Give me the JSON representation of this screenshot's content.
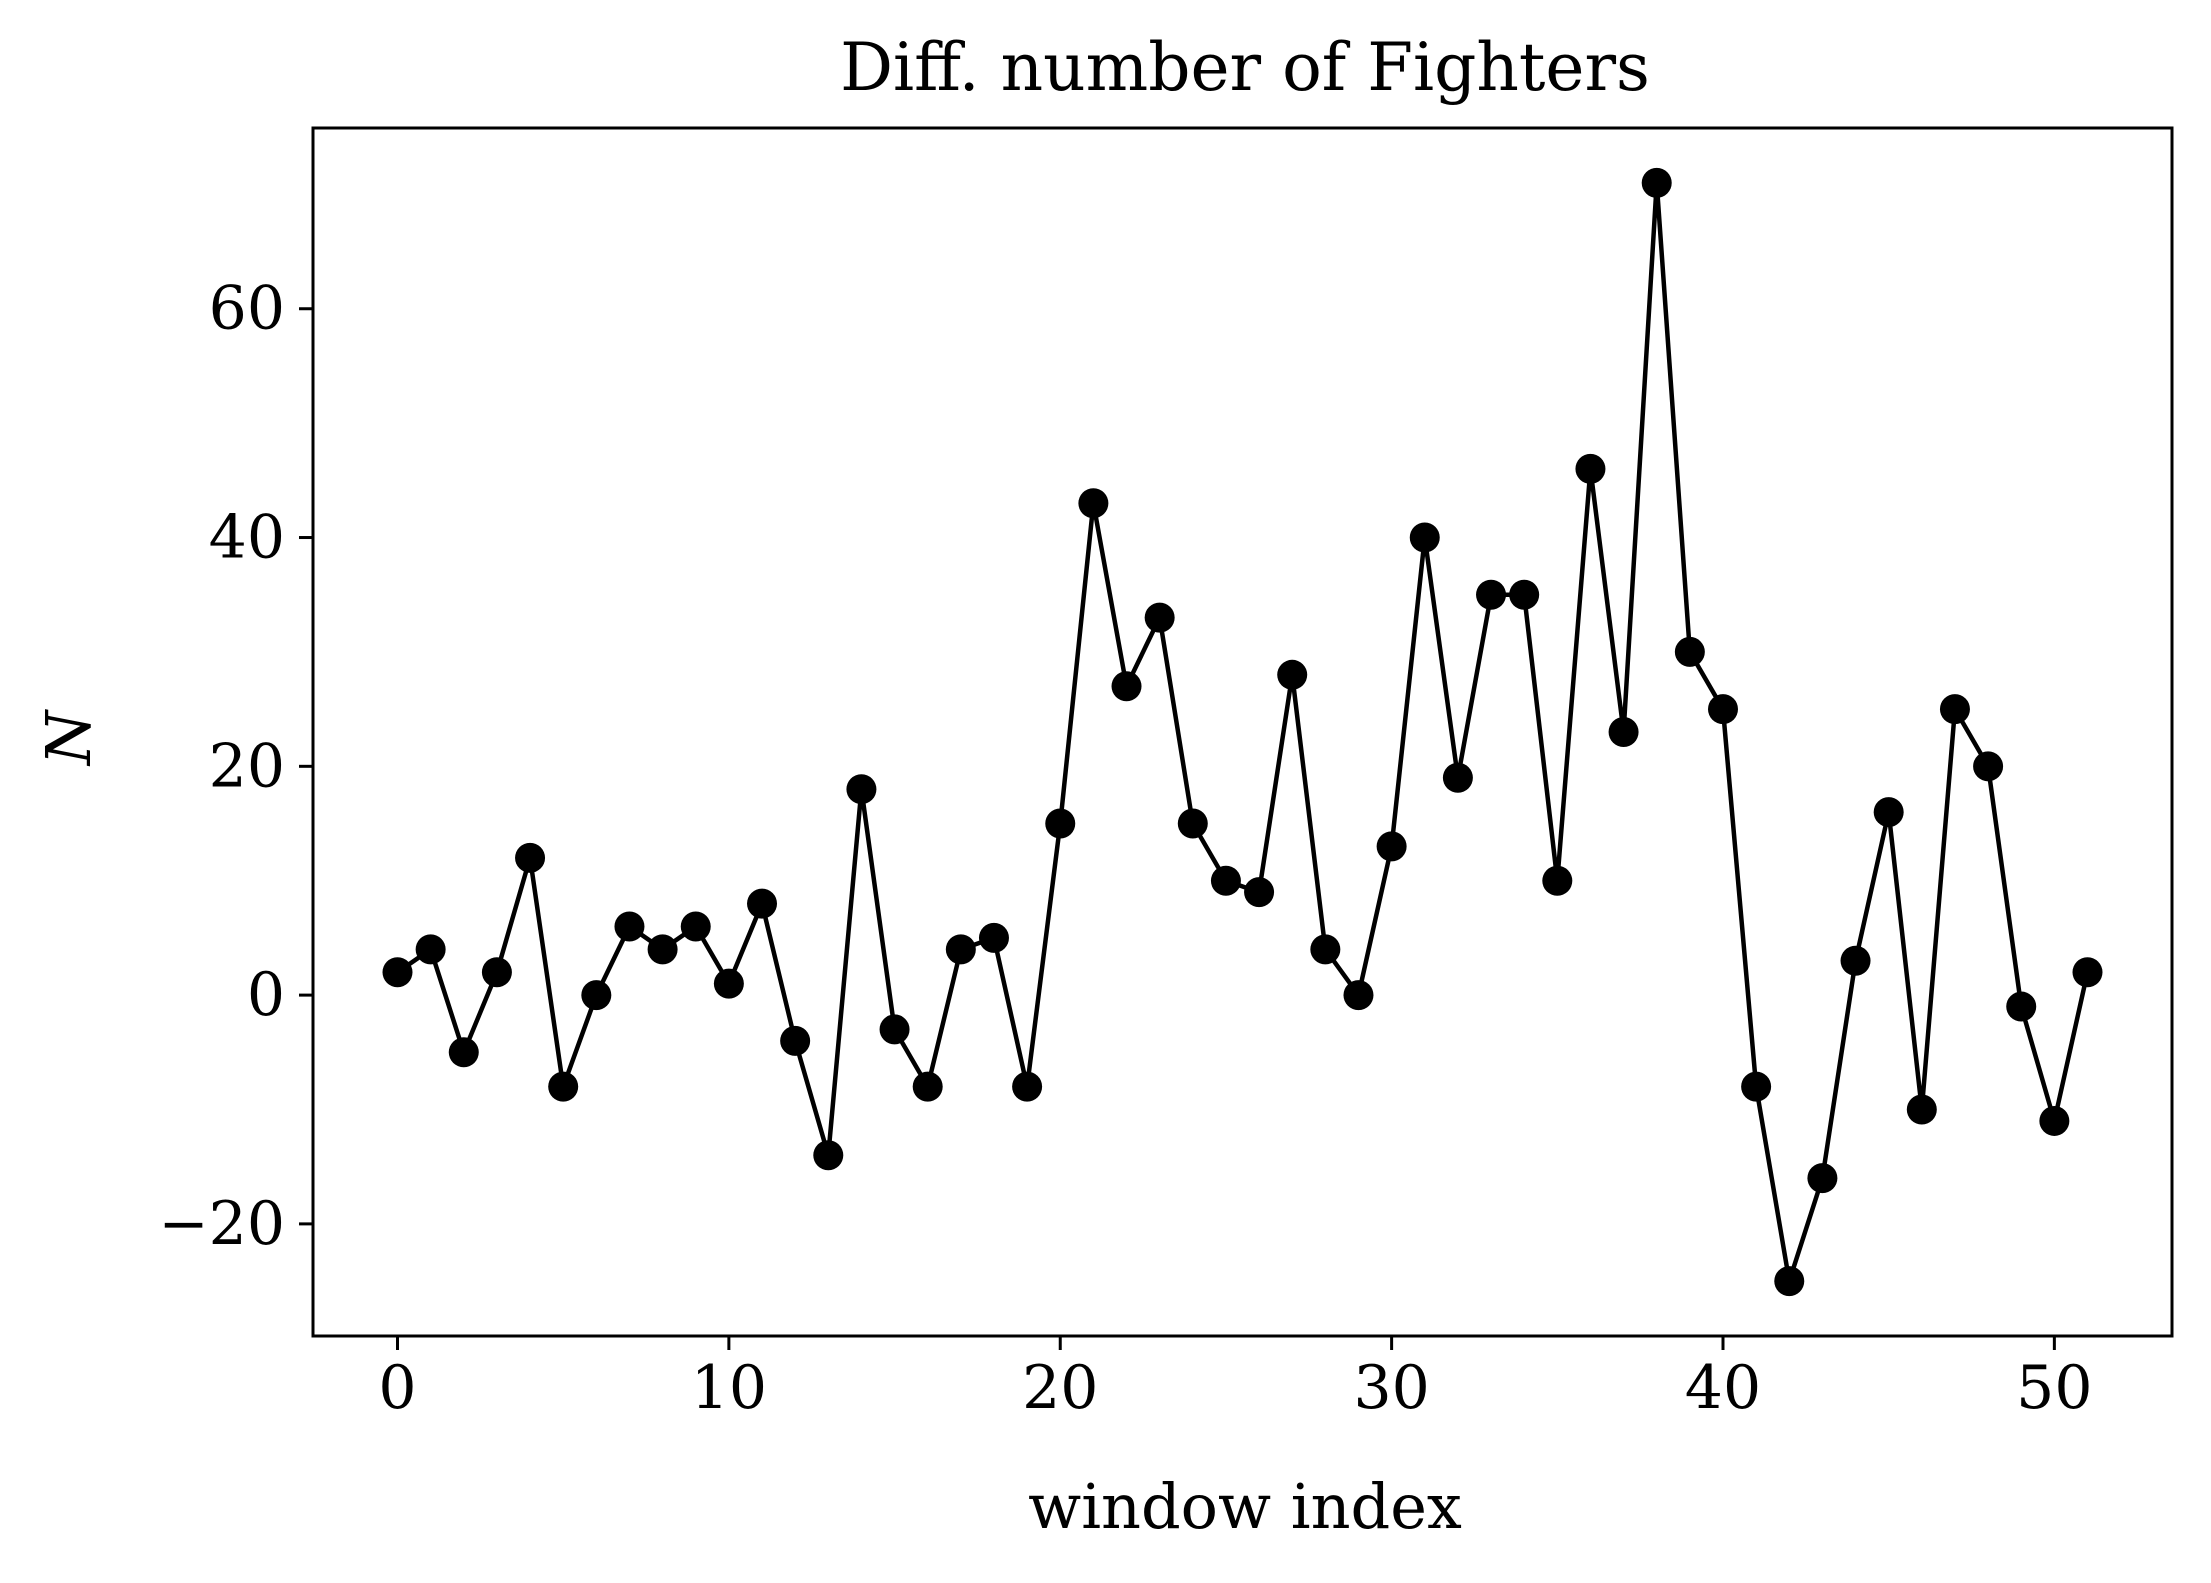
{
  "chart_data": {
    "type": "line",
    "title": "Diff. number of Fighters",
    "xlabel": "window index",
    "ylabel": "N",
    "xlim": [
      -2.55,
      53.55
    ],
    "ylim": [
      -29.8,
      75.8
    ],
    "xticks": [
      0,
      10,
      20,
      30,
      40,
      50
    ],
    "yticks": [
      -20,
      0,
      20,
      40,
      60
    ],
    "ytick_labels": [
      "−20",
      "0",
      "20",
      "40",
      "60"
    ],
    "grid": false,
    "legend": "none",
    "color": "#000000",
    "series": [
      {
        "x": [
          0,
          1,
          2,
          3,
          4,
          5,
          6,
          7,
          8,
          9,
          10,
          11,
          12,
          13,
          14,
          15,
          16,
          17,
          18,
          19,
          20,
          21,
          22,
          23,
          24,
          25,
          26,
          27,
          28,
          29,
          30,
          31,
          32,
          33,
          34,
          35,
          36,
          37,
          38,
          39,
          40,
          41,
          42,
          43,
          44,
          45,
          46,
          47,
          48,
          49,
          50,
          51
        ],
        "values": [
          2,
          4,
          -5,
          2,
          12,
          -8,
          0,
          6,
          4,
          6,
          1,
          8,
          -4,
          -14,
          18,
          -3,
          -8,
          4,
          5,
          -8,
          15,
          43,
          27,
          33,
          15,
          10,
          9,
          28,
          4,
          0,
          13,
          40,
          19,
          35,
          35,
          10,
          46,
          23,
          71,
          30,
          25,
          -8,
          -25,
          -16,
          3,
          16,
          -10,
          25,
          20,
          -1,
          -11,
          2
        ]
      }
    ]
  }
}
